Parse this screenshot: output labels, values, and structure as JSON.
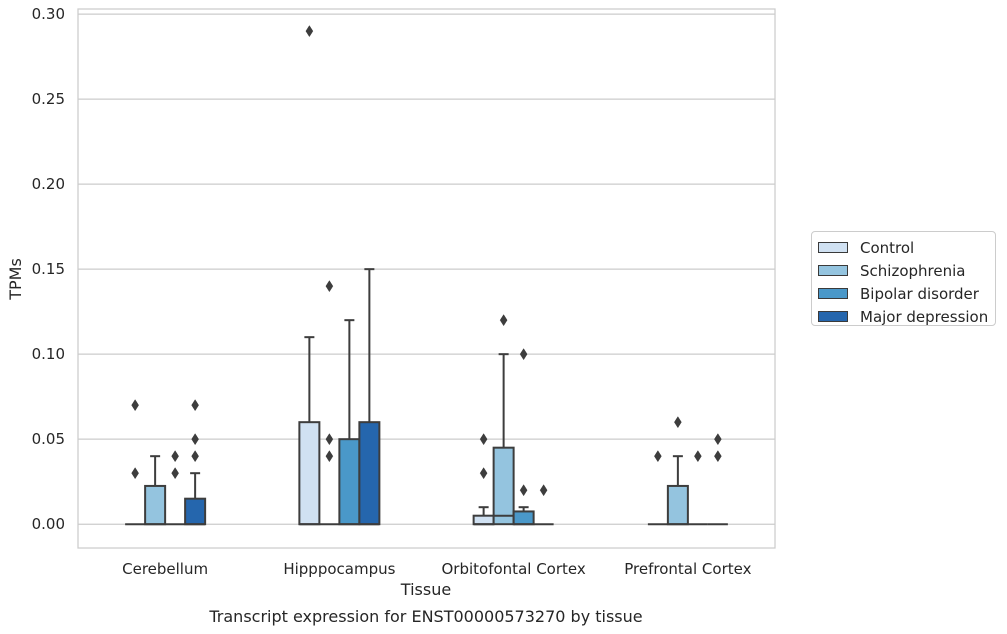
{
  "chart_data": {
    "type": "box",
    "title": "",
    "xlabel": "Tissue",
    "ylabel": "TPMs",
    "caption": "Transcript expression for ENST00000573270 by tissue",
    "ylim": [
      -0.014,
      0.303
    ],
    "yticks": [
      0.0,
      0.05,
      0.1,
      0.15,
      0.2,
      0.25,
      0.3
    ],
    "ytick_labels": [
      "0.00",
      "0.05",
      "0.10",
      "0.15",
      "0.20",
      "0.25",
      "0.30"
    ],
    "grid": "horizontal",
    "legend_position": "right",
    "categories": [
      "Cerebellum",
      "Hipppocampus",
      "Orbitofontal Cortex",
      "Prefrontal Cortex"
    ],
    "series": [
      {
        "name": "Control",
        "color": "#d0e1f2",
        "boxes": [
          {
            "min": 0,
            "q1": 0,
            "median": 0,
            "q3": 0,
            "max": 0,
            "outliers": [
              0.03,
              0.07
            ]
          },
          {
            "min": 0,
            "q1": 0,
            "median": 0,
            "q3": 0.06,
            "max": 0.11,
            "outliers": [
              0.29
            ]
          },
          {
            "min": 0,
            "q1": 0,
            "median": 0,
            "q3": 0.005,
            "max": 0.01,
            "outliers": [
              0.03,
              0.05
            ]
          },
          {
            "min": 0,
            "q1": 0,
            "median": 0,
            "q3": 0,
            "max": 0,
            "outliers": [
              0.04
            ]
          }
        ]
      },
      {
        "name": "Schizophrenia",
        "color": "#94c4df",
        "boxes": [
          {
            "min": 0,
            "q1": 0,
            "median": 0,
            "q3": 0.0225,
            "max": 0.04,
            "outliers": []
          },
          {
            "min": 0,
            "q1": 0,
            "median": 0,
            "q3": 0,
            "max": 0,
            "outliers": [
              0.04,
              0.05,
              0.14
            ]
          },
          {
            "min": 0,
            "q1": 0,
            "median": 0.005,
            "q3": 0.045,
            "max": 0.1,
            "outliers": [
              0.12
            ]
          },
          {
            "min": 0,
            "q1": 0,
            "median": 0,
            "q3": 0.0225,
            "max": 0.04,
            "outliers": [
              0.06
            ]
          }
        ]
      },
      {
        "name": "Bipolar disorder",
        "color": "#4a98c9",
        "boxes": [
          {
            "min": 0,
            "q1": 0,
            "median": 0,
            "q3": 0,
            "max": 0,
            "outliers": [
              0.03,
              0.04
            ]
          },
          {
            "min": 0,
            "q1": 0,
            "median": 0,
            "q3": 0.05,
            "max": 0.12,
            "outliers": []
          },
          {
            "min": 0,
            "q1": 0,
            "median": 0,
            "q3": 0.0075,
            "max": 0.01,
            "outliers": [
              0.02,
              0.1
            ]
          },
          {
            "min": 0,
            "q1": 0,
            "median": 0,
            "q3": 0,
            "max": 0,
            "outliers": [
              0.04
            ]
          }
        ]
      },
      {
        "name": "Major depression",
        "color": "#2566ad",
        "boxes": [
          {
            "min": 0,
            "q1": 0,
            "median": 0,
            "q3": 0.015,
            "max": 0.03,
            "outliers": [
              0.04,
              0.05,
              0.07
            ]
          },
          {
            "min": 0,
            "q1": 0,
            "median": 0,
            "q3": 0.06,
            "max": 0.15,
            "outliers": []
          },
          {
            "min": 0,
            "q1": 0,
            "median": 0,
            "q3": 0,
            "max": 0,
            "outliers": [
              0.02
            ]
          },
          {
            "min": 0,
            "q1": 0,
            "median": 0,
            "q3": 0,
            "max": 0,
            "outliers": [
              0.04,
              0.05
            ]
          }
        ]
      }
    ]
  }
}
